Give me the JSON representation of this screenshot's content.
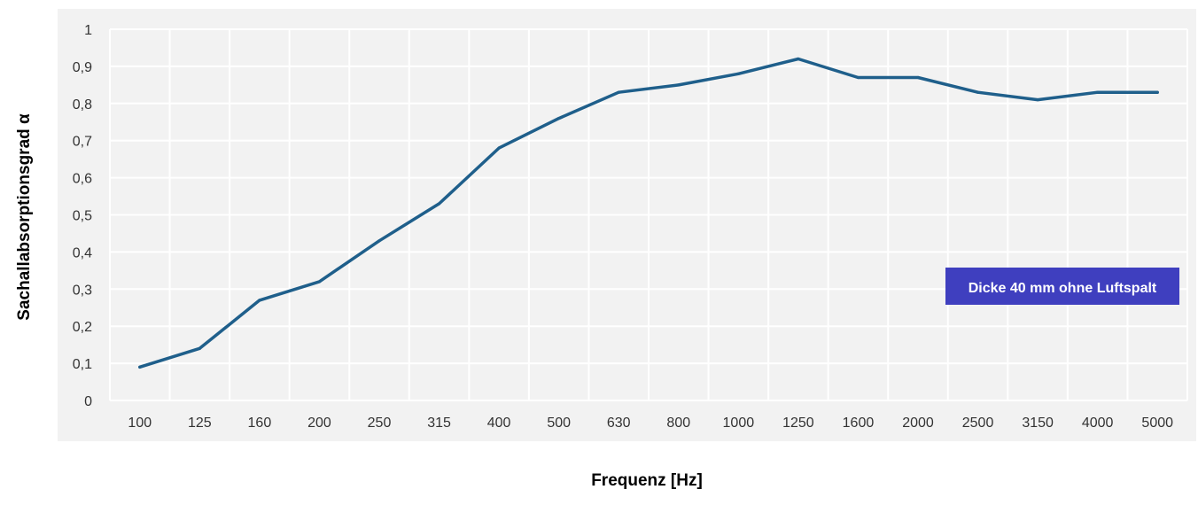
{
  "chart_data": {
    "type": "line",
    "xlabel": "Frequenz [Hz]",
    "ylabel": "Sachallabsorptionsgrad α",
    "categories": [
      "100",
      "125",
      "160",
      "200",
      "250",
      "315",
      "400",
      "500",
      "630",
      "800",
      "1000",
      "1250",
      "1600",
      "2000",
      "2500",
      "3150",
      "4000",
      "5000"
    ],
    "yticks": [
      "0",
      "0,1",
      "0,2",
      "0,3",
      "0,4",
      "0,5",
      "0,6",
      "0,7",
      "0,8",
      "0,9",
      "1"
    ],
    "ylim": [
      0,
      1
    ],
    "grid": true,
    "series": [
      {
        "values": [
          0.09,
          0.14,
          0.27,
          0.32,
          0.43,
          0.53,
          0.68,
          0.76,
          0.83,
          0.85,
          0.88,
          0.92,
          0.87,
          0.87,
          0.83,
          0.81,
          0.83,
          0.83
        ]
      }
    ],
    "annotation": "Dicke 40 mm ohne Luftspalt",
    "colors": {
      "line": "#1f5f8b",
      "plot_bg": "#f2f2f2",
      "grid": "#ffffff",
      "annotation_bg": "#3f3fbf",
      "annotation_text": "#ffffff"
    }
  }
}
